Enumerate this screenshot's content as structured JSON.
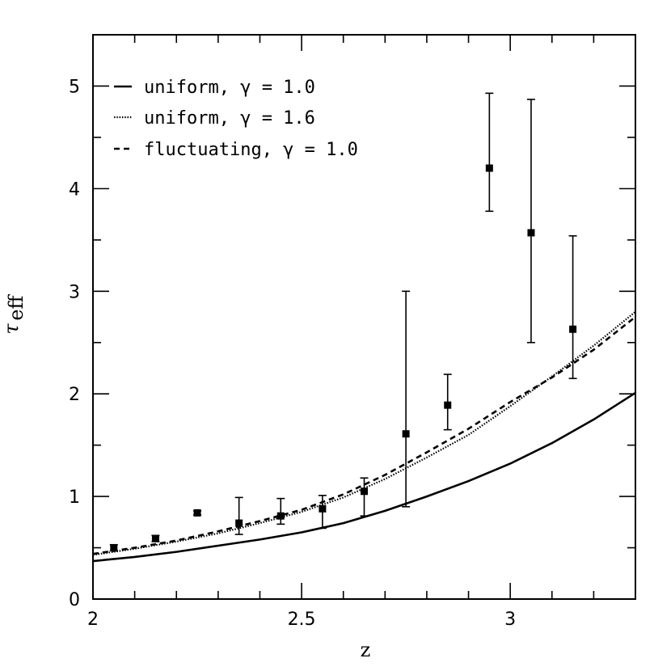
{
  "chart_data": {
    "type": "line",
    "title": "",
    "xlabel": "z",
    "ylabel": "τ",
    "ylabel_subscript": "eff",
    "xlim": [
      2.0,
      3.3
    ],
    "ylim": [
      0,
      5.5
    ],
    "x_ticks_major": [
      2,
      2.5,
      3
    ],
    "x_tick_labels": [
      "2",
      "2.5",
      "3"
    ],
    "x_ticks_minor": [
      2.1,
      2.2,
      2.3,
      2.4,
      2.6,
      2.7,
      2.8,
      2.9,
      3.1,
      3.2
    ],
    "y_ticks_major": [
      0,
      1,
      2,
      3,
      4,
      5
    ],
    "y_tick_labels": [
      "0",
      "1",
      "2",
      "3",
      "4",
      "5"
    ],
    "y_ticks_minor": [
      0.5,
      1.5,
      2.5,
      3.5,
      4.5
    ],
    "legend_position": "top-left",
    "series": [
      {
        "name": "uniform, γ = 1.0",
        "style": "solid",
        "x": [
          2.0,
          2.1,
          2.2,
          2.3,
          2.4,
          2.5,
          2.6,
          2.7,
          2.8,
          2.9,
          3.0,
          3.1,
          3.2,
          3.3
        ],
        "y": [
          0.37,
          0.41,
          0.46,
          0.52,
          0.58,
          0.65,
          0.74,
          0.86,
          1.0,
          1.15,
          1.32,
          1.52,
          1.75,
          2.01
        ]
      },
      {
        "name": "uniform, γ = 1.6",
        "style": "dotted",
        "x": [
          2.0,
          2.1,
          2.2,
          2.3,
          2.4,
          2.5,
          2.6,
          2.7,
          2.8,
          2.9,
          3.0,
          3.1,
          3.2,
          3.3
        ],
        "y": [
          0.43,
          0.49,
          0.56,
          0.64,
          0.74,
          0.85,
          0.99,
          1.17,
          1.38,
          1.6,
          1.88,
          2.17,
          2.47,
          2.8
        ]
      },
      {
        "name": "fluctuating, γ = 1.0",
        "style": "dashed",
        "x": [
          2.0,
          2.1,
          2.2,
          2.3,
          2.4,
          2.5,
          2.6,
          2.7,
          2.8,
          2.9,
          3.0,
          3.1,
          3.2,
          3.3
        ],
        "y": [
          0.44,
          0.5,
          0.57,
          0.66,
          0.76,
          0.87,
          1.02,
          1.21,
          1.43,
          1.66,
          1.92,
          2.16,
          2.43,
          2.75
        ]
      }
    ],
    "points": {
      "x": [
        2.05,
        2.15,
        2.25,
        2.35,
        2.45,
        2.55,
        2.65,
        2.75,
        2.85,
        2.95,
        3.05,
        3.15
      ],
      "y": [
        0.5,
        0.59,
        0.84,
        0.74,
        0.81,
        0.88,
        1.05,
        1.61,
        1.89,
        4.2,
        3.57,
        2.63
      ],
      "err_low": [
        0.47,
        0.56,
        0.82,
        0.63,
        0.73,
        0.69,
        0.81,
        0.9,
        1.65,
        3.78,
        2.5,
        2.15
      ],
      "err_high": [
        0.53,
        0.62,
        0.86,
        0.99,
        0.98,
        1.01,
        1.18,
        3.0,
        2.19,
        4.93,
        4.87,
        3.54
      ]
    }
  }
}
